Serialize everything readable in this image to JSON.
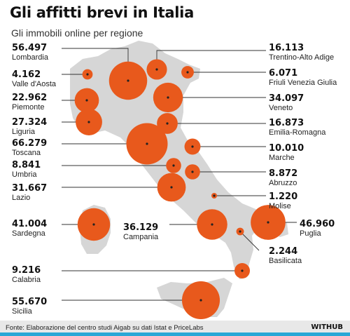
{
  "header": {
    "title": "Gli affitti brevi in Italia",
    "subtitle": "Gli immobili online per regione"
  },
  "colors": {
    "bubble": "#e8591c",
    "land": "#d6d6d6",
    "leader": "#333333",
    "accent": "#2aa7d6"
  },
  "chart_data": {
    "type": "bubble-map",
    "title": "Gli affitti brevi in Italia",
    "subtitle": "Gli immobili online per regione",
    "regions": [
      {
        "name": "Lombardia",
        "label": "56.497",
        "value": 56497
      },
      {
        "name": "Valle d'Aosta",
        "label": "4.162",
        "value": 4162
      },
      {
        "name": "Piemonte",
        "label": "22.962",
        "value": 22962
      },
      {
        "name": "Liguria",
        "label": "27.324",
        "value": 27324
      },
      {
        "name": "Toscana",
        "label": "66.279",
        "value": 66279
      },
      {
        "name": "Umbria",
        "label": "8.841",
        "value": 8841
      },
      {
        "name": "Lazio",
        "label": "31.667",
        "value": 31667
      },
      {
        "name": "Sardegna",
        "label": "41.004",
        "value": 41004
      },
      {
        "name": "Campania",
        "label": "36.129",
        "value": 36129
      },
      {
        "name": "Calabria",
        "label": "9.216",
        "value": 9216
      },
      {
        "name": "Sicilia",
        "label": "55.670",
        "value": 55670
      },
      {
        "name": "Trentino-Alto Adige",
        "label": "16.113",
        "value": 16113
      },
      {
        "name": "Friuli Venezia Giulia",
        "label": "6.071",
        "value": 6071
      },
      {
        "name": "Veneto",
        "label": "34.097",
        "value": 34097
      },
      {
        "name": "Emilia-Romagna",
        "label": "16.873",
        "value": 16873
      },
      {
        "name": "Marche",
        "label": "10.010",
        "value": 10010
      },
      {
        "name": "Abruzzo",
        "label": "8.872",
        "value": 8872
      },
      {
        "name": "Molise",
        "label": "1.220",
        "value": 1220
      },
      {
        "name": "Puglia",
        "label": "46.960",
        "value": 46960
      },
      {
        "name": "Basilicata",
        "label": "2.244",
        "value": 2244
      }
    ]
  },
  "footer": {
    "source": "Fonte: Elaborazione del centro studi Aigab su dati Istat e PriceLabs",
    "brand": "WITHUB"
  }
}
